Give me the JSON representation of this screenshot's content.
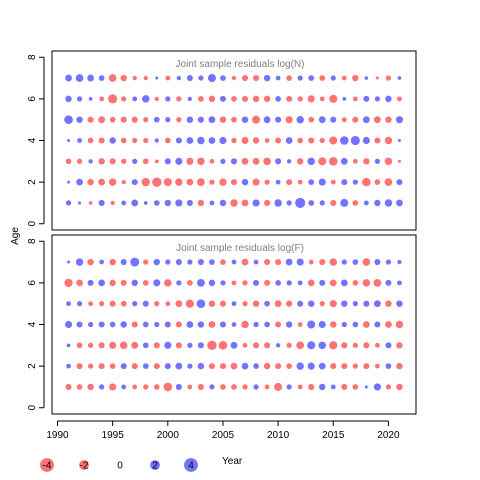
{
  "chart_data": {
    "type": "scatter",
    "subtype": "bubble-residuals",
    "ylabel": "Age",
    "xlabel": "Year",
    "years": [
      1991,
      1992,
      1993,
      1994,
      1995,
      1996,
      1997,
      1998,
      1999,
      2000,
      2001,
      2002,
      2003,
      2004,
      2005,
      2006,
      2007,
      2008,
      2009,
      2010,
      2011,
      2012,
      2013,
      2014,
      2015,
      2016,
      2017,
      2018,
      2019,
      2020,
      2021
    ],
    "ages": [
      1,
      2,
      3,
      4,
      5,
      6,
      7
    ],
    "xlim": [
      1989.5,
      2022.5
    ],
    "ylim": [
      -0.3,
      8.3
    ],
    "x_ticks": [
      "1990",
      "1995",
      "2000",
      "2005",
      "2010",
      "2015",
      "2020"
    ],
    "y_ticks": [
      "0",
      "2",
      "4",
      "6",
      "8"
    ],
    "colors": {
      "positive": "#0000ff",
      "negative": "#ff0000",
      "opacity": 0.55
    },
    "legend": {
      "placement": "bottom-left",
      "items": [
        {
          "label": "-4",
          "value": -4
        },
        {
          "label": "-2",
          "value": -2
        },
        {
          "label": "0",
          "value": 0
        },
        {
          "label": "2",
          "value": 2
        },
        {
          "label": "4",
          "value": 4
        }
      ]
    },
    "panels": [
      {
        "title": "Joint sample residuals log(N)",
        "residuals": [
          [
            0.6,
            0.2,
            -0.3,
            0.8,
            -0.4,
            0.5,
            1.0,
            0.3,
            0.7,
            0.9,
            1.1,
            0.8,
            -0.9,
            0.5,
            0.9,
            -1.2,
            -1.0,
            1.1,
            -0.8,
            1.2,
            0.6,
            2.2,
            0.7,
            0.6,
            -0.8,
            1.4,
            -0.7,
            0.5,
            0.9,
            1.2,
            1.0
          ],
          [
            0.2,
            1.0,
            -0.9,
            -1.0,
            -1.2,
            -0.4,
            0.8,
            -1.5,
            -1.9,
            -1.4,
            -1.2,
            -1.0,
            -1.3,
            -0.6,
            -1.2,
            -0.8,
            0.9,
            -1.1,
            -0.6,
            0.5,
            -0.8,
            -0.5,
            0.7,
            1.1,
            -0.5,
            0.8,
            0.6,
            -1.6,
            -0.7,
            -1.3,
            0.8
          ],
          [
            -0.7,
            -0.6,
            0.4,
            -0.9,
            -0.8,
            -0.6,
            0.6,
            -0.7,
            -0.3,
            0.8,
            1.1,
            -1.1,
            -1.2,
            -0.5,
            0.6,
            0.8,
            -1.0,
            -1.0,
            -1.2,
            0.8,
            0.4,
            -0.9,
            1.2,
            -1.4,
            -1.6,
            1.0,
            -0.5,
            -0.9,
            0.6,
            -1.2,
            -0.2
          ],
          [
            0.2,
            0.5,
            -0.7,
            -0.8,
            0.9,
            -0.7,
            -0.6,
            -0.6,
            0.4,
            -0.7,
            0.8,
            1.0,
            1.2,
            1.0,
            1.1,
            -0.6,
            -1.1,
            -0.9,
            -0.5,
            -0.8,
            1.0,
            -0.7,
            -0.8,
            -0.6,
            -1.4,
            1.6,
            1.8,
            1.1,
            -0.8,
            -1.2,
            0.2
          ],
          [
            1.6,
            0.9,
            -0.8,
            -1.0,
            -0.7,
            -0.8,
            -0.8,
            -0.6,
            0.7,
            0.6,
            -0.6,
            0.9,
            0.8,
            1.0,
            -0.9,
            -0.7,
            0.9,
            -1.4,
            1.0,
            0.8,
            -1.1,
            1.2,
            -0.7,
            1.0,
            0.8,
            -0.5,
            -0.8,
            1.0,
            -1.0,
            -0.9,
            1.1
          ],
          [
            0.9,
            0.6,
            0.3,
            -0.5,
            -1.8,
            -0.6,
            0.5,
            1.2,
            -0.4,
            0.6,
            -0.6,
            0.4,
            -0.7,
            -0.9,
            0.8,
            -0.7,
            -0.8,
            -0.9,
            -0.9,
            0.7,
            -0.8,
            -0.6,
            -1.1,
            -0.5,
            -1.4,
            0.3,
            -0.5,
            0.8,
            0.6,
            0.9,
            -0.5
          ],
          [
            1.0,
            1.3,
            1.0,
            0.7,
            -1.3,
            -0.9,
            -0.4,
            -0.4,
            0.2,
            -0.5,
            0.4,
            0.8,
            0.6,
            1.4,
            0.7,
            -0.4,
            -0.8,
            -0.8,
            0.9,
            0.5,
            -0.7,
            0.6,
            0.7,
            -0.7,
            0.6,
            -0.5,
            -0.9,
            0.3,
            -0.2,
            -0.6,
            0.3
          ]
        ]
      },
      {
        "title": "Joint sample residuals log(F)",
        "residuals": [
          [
            -0.8,
            -0.7,
            -0.9,
            0.6,
            -1.1,
            0.5,
            -0.5,
            -0.6,
            -0.7,
            -1.6,
            0.8,
            -0.5,
            -0.8,
            0.6,
            -0.7,
            -0.7,
            -0.6,
            0.6,
            -0.5,
            -1.4,
            0.6,
            -0.5,
            -0.8,
            0.9,
            0.5,
            -0.8,
            -0.7,
            0.2,
            1.1,
            -0.6,
            -0.9
          ],
          [
            0.5,
            -0.8,
            -0.6,
            -0.8,
            -0.7,
            0.8,
            -0.8,
            0.7,
            -0.8,
            0.8,
            1.0,
            0.6,
            0.9,
            -0.8,
            -0.8,
            -1.0,
            1.0,
            0.7,
            -0.9,
            -0.8,
            -0.7,
            1.2,
            1.1,
            1.0,
            -0.8,
            -0.8,
            -0.6,
            -0.8,
            -0.5,
            0.7,
            -0.9
          ],
          [
            0.3,
            -0.7,
            -0.6,
            -0.8,
            -1.1,
            -1.2,
            -1.0,
            0.7,
            -0.8,
            1.1,
            -0.8,
            0.6,
            0.8,
            -1.9,
            -1.6,
            1.0,
            -0.5,
            -0.8,
            -0.8,
            0.4,
            -0.6,
            -1.3,
            1.4,
            1.2,
            -1.5,
            -0.8,
            -0.6,
            -0.8,
            -0.5,
            0.8,
            -0.9
          ],
          [
            1.1,
            0.8,
            0.6,
            0.8,
            0.7,
            0.9,
            -0.8,
            0.7,
            0.6,
            0.8,
            -0.8,
            1.0,
            0.9,
            -1.0,
            0.8,
            0.5,
            -1.2,
            0.6,
            0.7,
            -0.8,
            0.9,
            -0.5,
            1.4,
            1.1,
            -0.9,
            0.6,
            0.7,
            -1.0,
            0.8,
            -1.0,
            -1.2
          ],
          [
            0.5,
            0.6,
            -0.5,
            -0.6,
            -0.8,
            -0.7,
            0.6,
            0.8,
            -0.6,
            -0.5,
            -1.0,
            -1.5,
            1.6,
            -0.9,
            -0.8,
            0.5,
            -0.6,
            -0.9,
            0.7,
            -1.0,
            -0.8,
            0.8,
            0.9,
            -0.6,
            -1.1,
            0.9,
            0.6,
            0.8,
            1.0,
            -0.9,
            0.9
          ],
          [
            -1.5,
            -1.0,
            0.8,
            1.0,
            -0.9,
            -0.8,
            0.9,
            -0.7,
            1.1,
            -1.2,
            0.6,
            -0.7,
            1.3,
            0.9,
            0.6,
            -0.5,
            -0.6,
            0.8,
            -0.8,
            0.7,
            0.6,
            0.5,
            -1.0,
            0.8,
            -1.0,
            1.0,
            -0.7,
            -1.2,
            -1.3,
            0.8,
            0.5
          ],
          [
            0.2,
            1.2,
            -0.9,
            0.5,
            -0.9,
            0.8,
            1.7,
            -0.6,
            0.9,
            0.6,
            0.8,
            0.6,
            0.8,
            0.7,
            -0.7,
            0.5,
            -1.0,
            0.5,
            -0.8,
            -0.8,
            1.0,
            1.1,
            -0.5,
            -0.8,
            -1.2,
            0.6,
            0.7,
            -1.3,
            0.8,
            0.6,
            0.4
          ]
        ]
      }
    ]
  }
}
